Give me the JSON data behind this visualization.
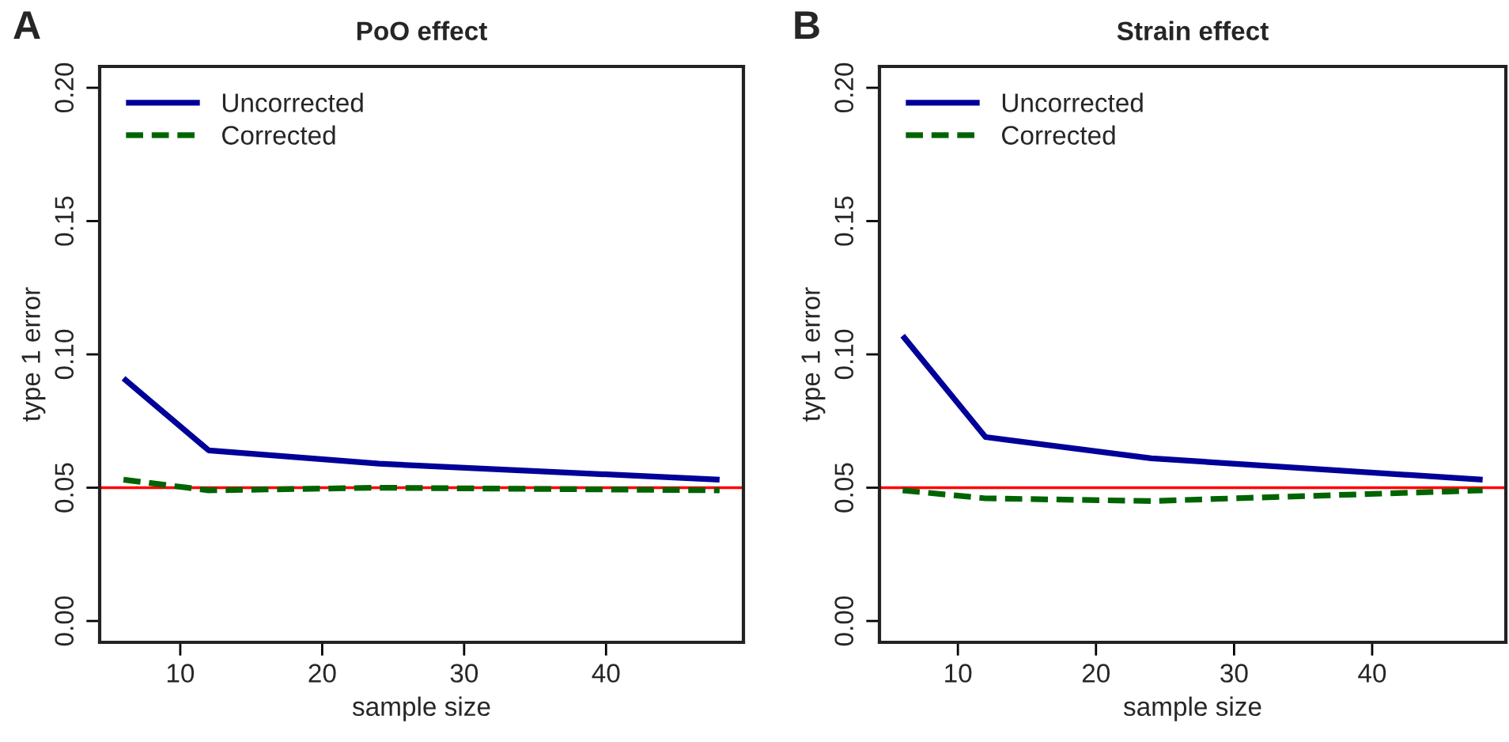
{
  "chart_data": [
    {
      "type": "line",
      "title": "PoO effect",
      "xlabel": "sample size",
      "ylabel": "type 1 error",
      "annotations": [
        "A"
      ],
      "x": [
        6,
        12,
        24,
        48
      ],
      "xlim": [
        4.32,
        49.68
      ],
      "xticks": [
        10,
        20,
        30,
        40
      ],
      "ylim": [
        -0.008,
        0.208
      ],
      "yticks": [
        {
          "value": 0,
          "label": "0.00"
        },
        {
          "value": 0.05,
          "label": "0.05"
        },
        {
          "value": 0.1,
          "label": "0.10"
        },
        {
          "value": 0.15,
          "label": "0.15"
        },
        {
          "value": 0.2,
          "label": "0.20"
        }
      ],
      "series": [
        {
          "name": "Uncorrected",
          "color": "#000099",
          "line_style": "solid",
          "values": [
            0.091,
            0.064,
            0.059,
            0.053
          ]
        },
        {
          "name": "Corrected",
          "color": "#006400",
          "line_style": "dashed",
          "values": [
            0.053,
            0.049,
            0.05,
            0.049
          ]
        }
      ],
      "ref_lines": [
        {
          "axis": "y",
          "value": 0.05,
          "label": null,
          "color": "#ff0000"
        }
      ],
      "legend": "top left",
      "grid": false
    },
    {
      "type": "line",
      "title": "Strain effect",
      "xlabel": "sample size",
      "ylabel": "type 1 error",
      "annotations": [
        "B"
      ],
      "x": [
        6,
        12,
        24,
        48
      ],
      "xlim": [
        4.32,
        49.68
      ],
      "xticks": [
        10,
        20,
        30,
        40
      ],
      "ylim": [
        -0.008,
        0.208
      ],
      "yticks": [
        {
          "value": 0,
          "label": "0.00"
        },
        {
          "value": 0.05,
          "label": "0.05"
        },
        {
          "value": 0.1,
          "label": "0.10"
        },
        {
          "value": 0.15,
          "label": "0.15"
        },
        {
          "value": 0.2,
          "label": "0.20"
        }
      ],
      "series": [
        {
          "name": "Uncorrected",
          "color": "#000099",
          "line_style": "solid",
          "values": [
            0.107,
            0.069,
            0.061,
            0.053
          ]
        },
        {
          "name": "Corrected",
          "color": "#006400",
          "line_style": "dashed",
          "values": [
            0.049,
            0.046,
            0.045,
            0.049
          ]
        }
      ],
      "ref_lines": [
        {
          "axis": "y",
          "value": 0.05,
          "label": null,
          "color": "#ff0000"
        }
      ],
      "legend": "top left",
      "grid": false
    }
  ]
}
